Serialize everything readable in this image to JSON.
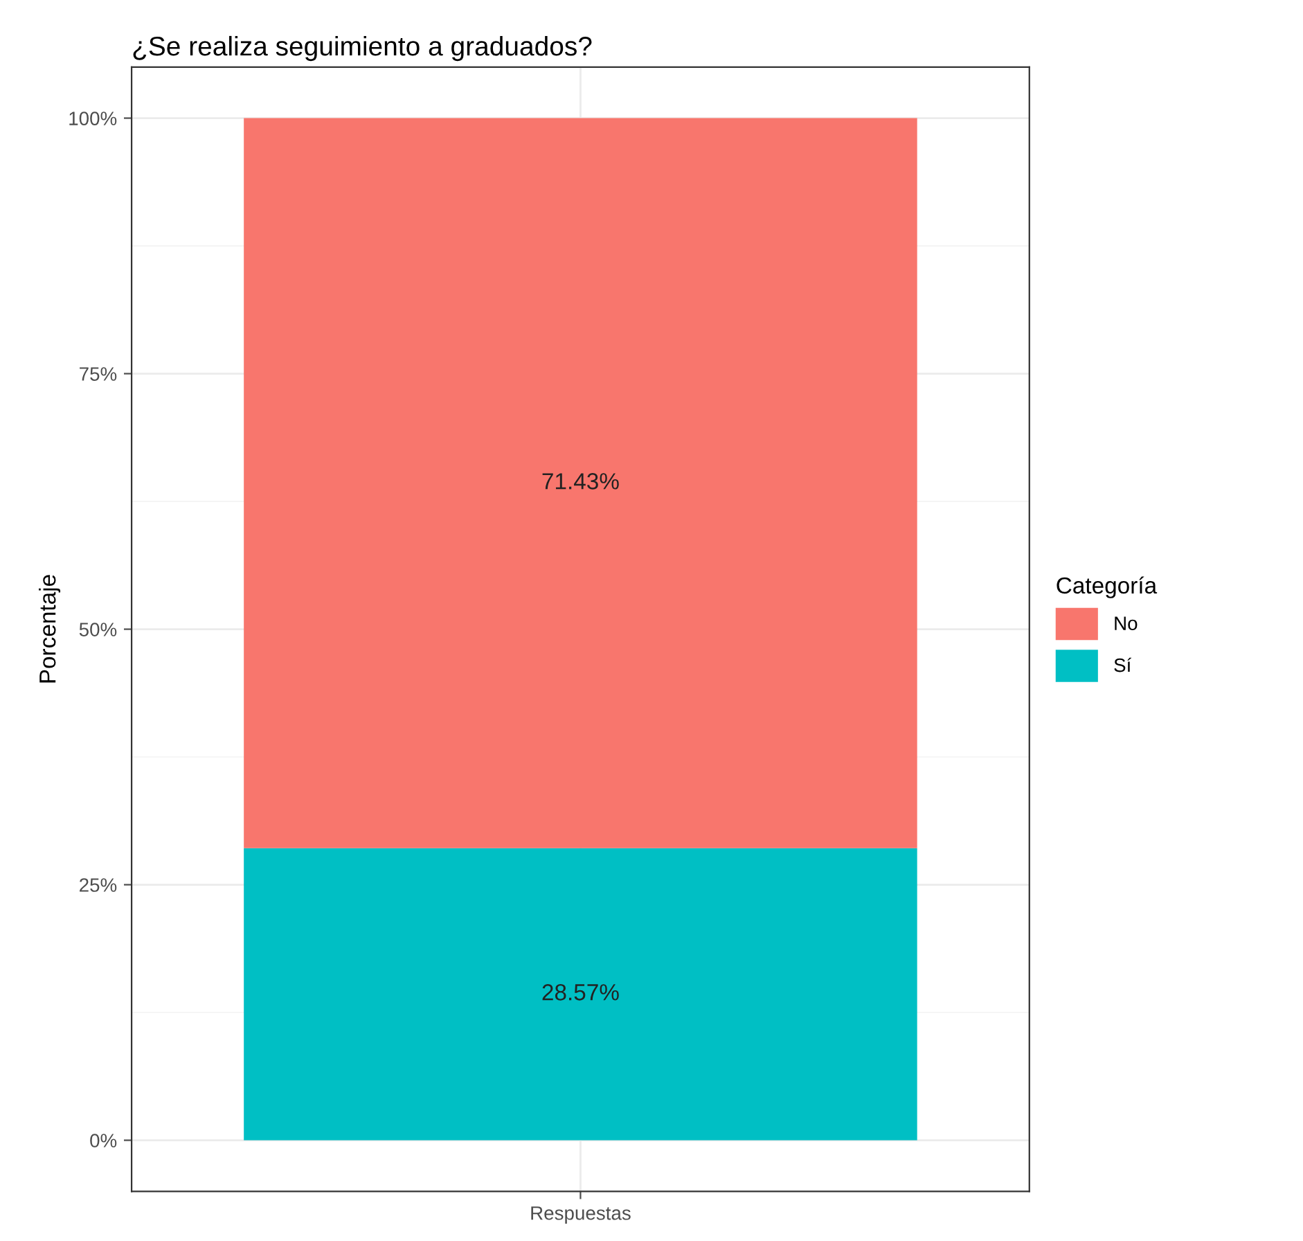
{
  "chart_data": {
    "type": "bar",
    "title": "¿Se realiza seguimiento a graduados?",
    "ylabel": "Porcentaje",
    "legend_title": "Categoría",
    "categories": [
      "Respuestas"
    ],
    "stacked": true,
    "series": [
      {
        "name": "Sí",
        "color": "#00bfc4",
        "values": [
          28.57
        ],
        "value_labels": [
          "28.57%"
        ]
      },
      {
        "name": "No",
        "color": "#f8766d",
        "values": [
          71.43
        ],
        "value_labels": [
          "71.43%"
        ]
      }
    ],
    "ylim": [
      -5,
      105
    ],
    "yticks": [
      {
        "value": 0,
        "label": "0%"
      },
      {
        "value": 25,
        "label": "25%"
      },
      {
        "value": 50,
        "label": "50%"
      },
      {
        "value": 75,
        "label": "75%"
      },
      {
        "value": 100,
        "label": "100%"
      }
    ],
    "grid": true,
    "legend": "right"
  }
}
